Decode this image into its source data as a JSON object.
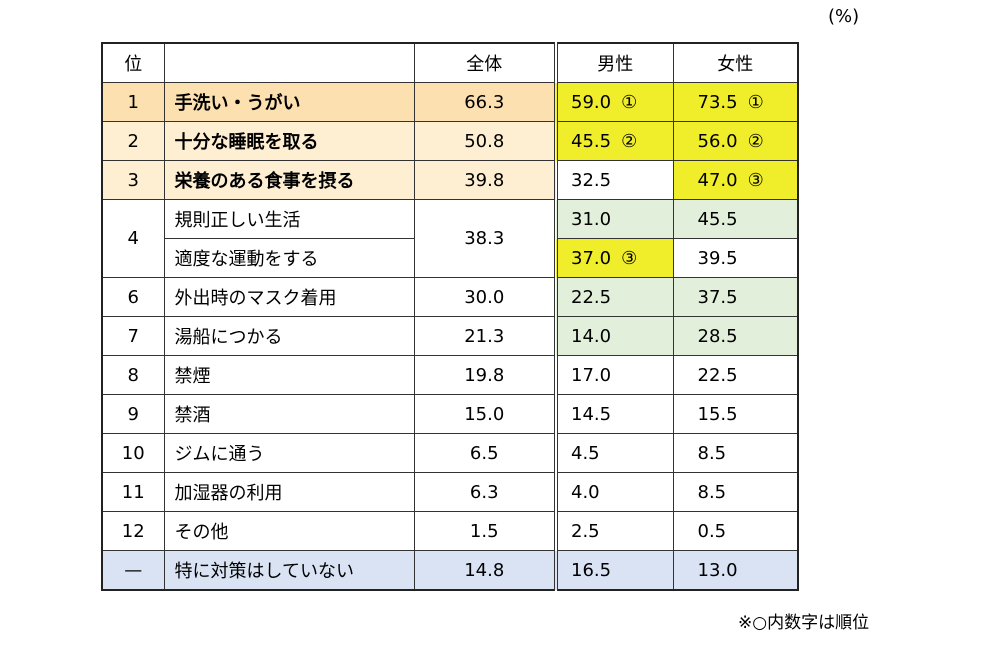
{
  "unit": "(%)",
  "header": {
    "rank": "位",
    "total": "全体",
    "male": "男性",
    "female": "女性"
  },
  "rows": [
    {
      "rank": "1",
      "item": "手洗い・うがい",
      "total": "66.3",
      "male": "59.0",
      "male_rank": "①",
      "female": "73.5",
      "female_rank": "①"
    },
    {
      "rank": "2",
      "item": "十分な睡眠を取る",
      "total": "50.8",
      "male": "45.5",
      "male_rank": "②",
      "female": "56.0",
      "female_rank": "②"
    },
    {
      "rank": "3",
      "item": "栄養のある食事を摂る",
      "total": "39.8",
      "male": "32.5",
      "female": "47.0",
      "female_rank": "③"
    },
    {
      "rank": "4",
      "total": "38.3",
      "items": [
        {
          "item": "規則正しい生活",
          "male": "31.0",
          "female": "45.5"
        },
        {
          "item": "適度な運動をする",
          "male": "37.0",
          "male_rank": "③",
          "female": "39.5"
        }
      ]
    },
    {
      "rank": "6",
      "item": "外出時のマスク着用",
      "total": "30.0",
      "male": "22.5",
      "female": "37.5"
    },
    {
      "rank": "7",
      "item": "湯船につかる",
      "total": "21.3",
      "male": "14.0",
      "female": "28.5"
    },
    {
      "rank": "8",
      "item": "禁煙",
      "total": "19.8",
      "male": "17.0",
      "female": "22.5"
    },
    {
      "rank": "9",
      "item": "禁酒",
      "total": "15.0",
      "male": "14.5",
      "female": "15.5"
    },
    {
      "rank": "10",
      "item": "ジムに通う",
      "total": "6.5",
      "male": "4.5",
      "female": "8.5"
    },
    {
      "rank": "11",
      "item": "加湿器の利用",
      "total": "6.3",
      "male": "4.0",
      "female": "8.5"
    },
    {
      "rank": "12",
      "item": "その他",
      "total": "1.5",
      "male": "2.5",
      "female": "0.5"
    },
    {
      "rank": "—",
      "item": "特に対策はしていない",
      "total": "14.8",
      "male": "16.5",
      "female": "13.0"
    }
  ],
  "note": "※○内数字は順位"
}
